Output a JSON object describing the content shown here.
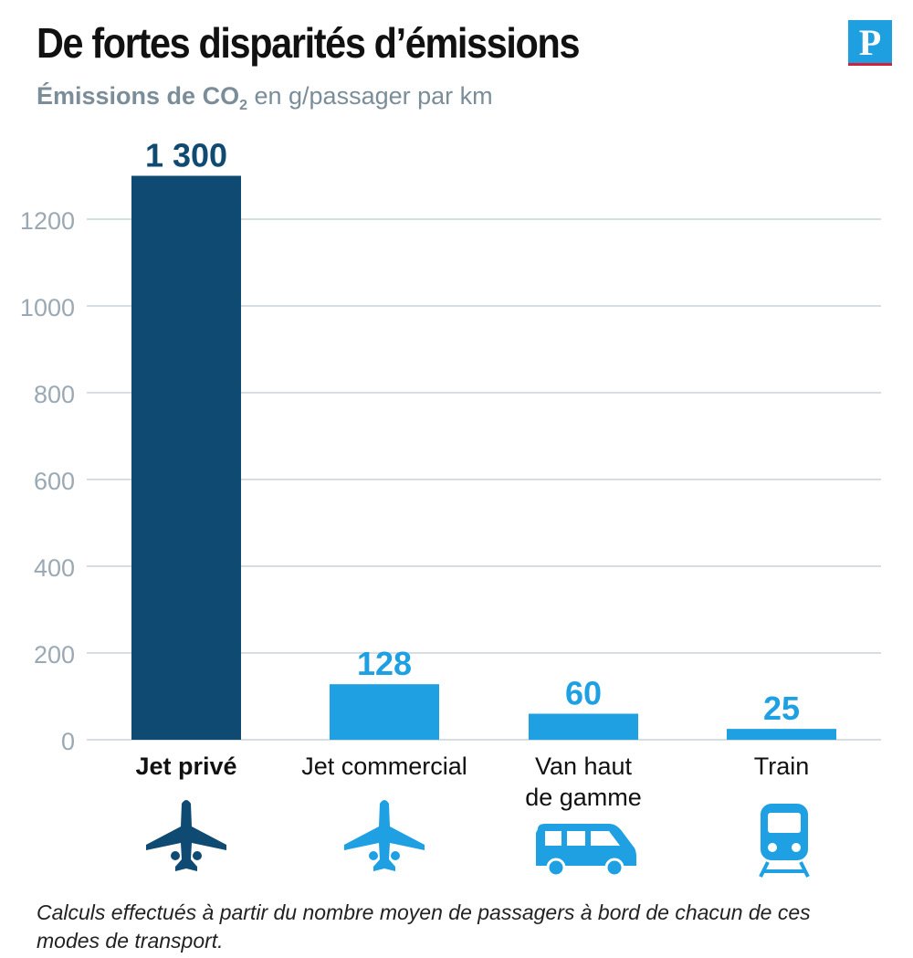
{
  "header": {
    "title": "De fortes disparités d’émissions",
    "subtitle_bold": "Émissions de CO",
    "subtitle_sub": "2",
    "subtitle_rest": " en g/passager par km",
    "logo_letter": "P"
  },
  "footnote": "Calculs effectués à partir du nombre moyen de passagers à bord de chacun de ces modes de transport.",
  "colors": {
    "dark_bar": "#0f4a73",
    "light_bar": "#1ea0e3",
    "grid": "#c9d4dc",
    "axis_text": "#9aa9b4"
  },
  "icons": [
    "plane-icon",
    "plane-icon",
    "van-icon",
    "train-icon"
  ],
  "chart_data": {
    "type": "bar",
    "categories": [
      "Jet privé",
      "Jet commercial",
      "Van haut de gamme",
      "Train"
    ],
    "category_lines": [
      [
        "Jet privé"
      ],
      [
        "Jet commercial"
      ],
      [
        "Van haut",
        "de gamme"
      ],
      [
        "Train"
      ]
    ],
    "values": [
      1300,
      128,
      60,
      25
    ],
    "value_labels": [
      "1 300",
      "128",
      "60",
      "25"
    ],
    "yticks": [
      0,
      200,
      400,
      600,
      800,
      1000,
      1200
    ],
    "ylim": [
      0,
      1300
    ],
    "grid": true,
    "title": "De fortes disparités d’émissions",
    "ylabel": "Émissions de CO2 en g/passager par km"
  }
}
